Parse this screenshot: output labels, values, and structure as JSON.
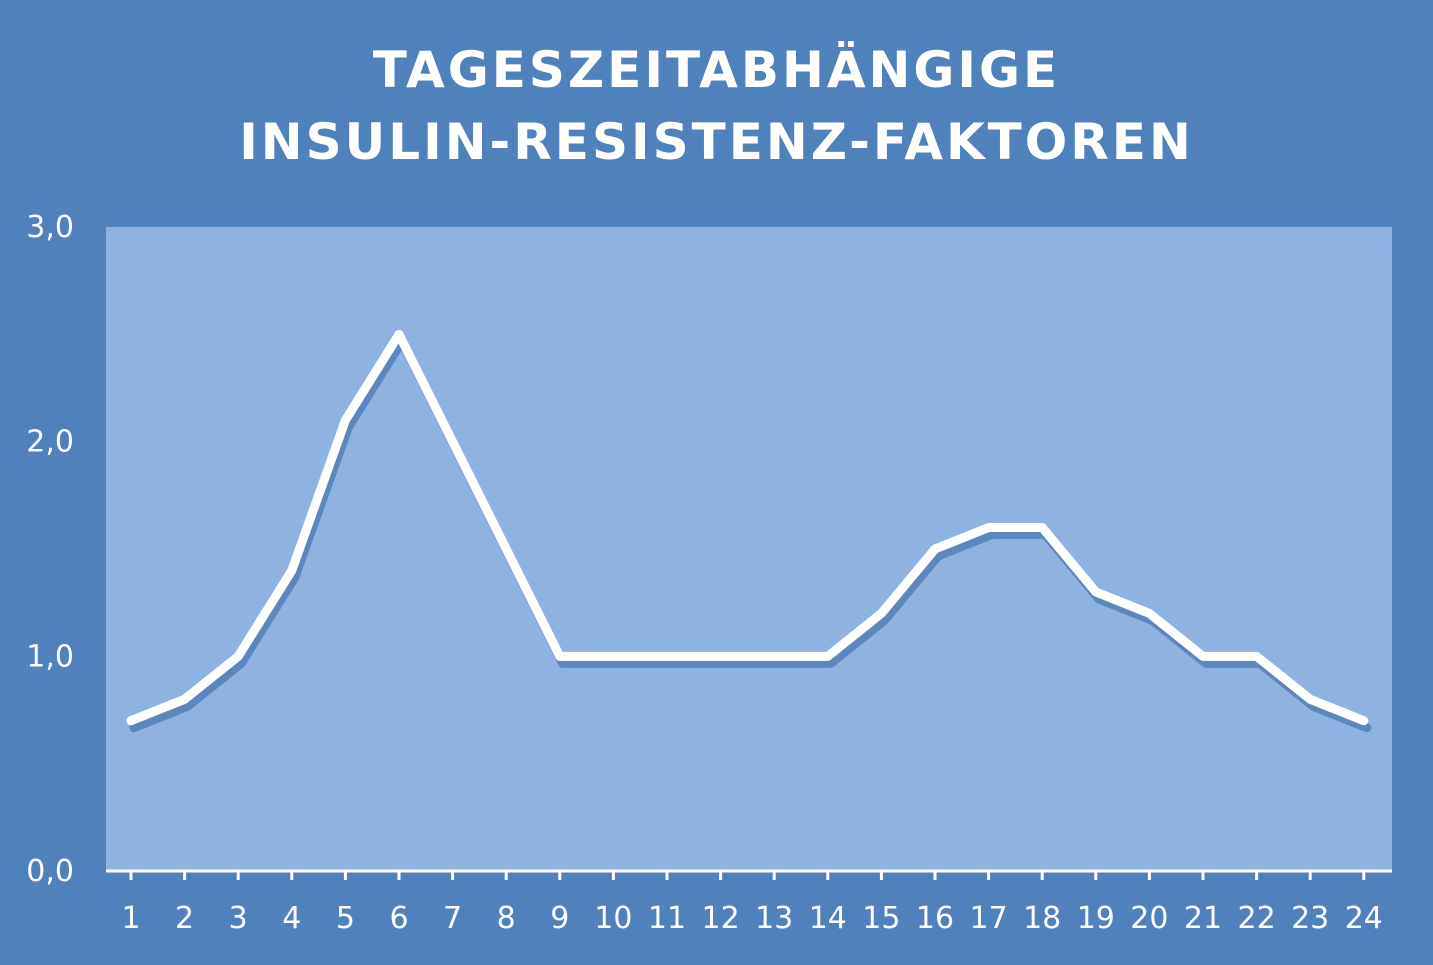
{
  "chart_data": {
    "type": "line",
    "title": "TAGESZEITABHÄNGIGE INSULIN-RESISTENZ-FAKTOREN",
    "title_lines": [
      "TAGESZEITABHÄNGIGE",
      "INSULIN-RESISTENZ-FAKTOREN"
    ],
    "categories": [
      "1",
      "2",
      "3",
      "4",
      "5",
      "6",
      "7",
      "8",
      "9",
      "10",
      "11",
      "12",
      "13",
      "14",
      "15",
      "16",
      "17",
      "18",
      "19",
      "20",
      "21",
      "22",
      "23",
      "24"
    ],
    "values": [
      0.7,
      0.8,
      1.0,
      1.4,
      2.1,
      2.5,
      2.0,
      1.5,
      1.0,
      1.0,
      1.0,
      1.0,
      1.0,
      1.0,
      1.2,
      1.5,
      1.6,
      1.6,
      1.3,
      1.2,
      1.0,
      1.0,
      0.8,
      0.7
    ],
    "y_ticks": [
      "0,0",
      "1,0",
      "2,0",
      "3,0"
    ],
    "ylim": [
      0,
      3
    ],
    "drop_lines": true,
    "grid": false,
    "colors": {
      "background": "#4f81bd",
      "plot_area": "#8eb2e2",
      "line": "#ffffff",
      "text": "#ffffff"
    }
  }
}
